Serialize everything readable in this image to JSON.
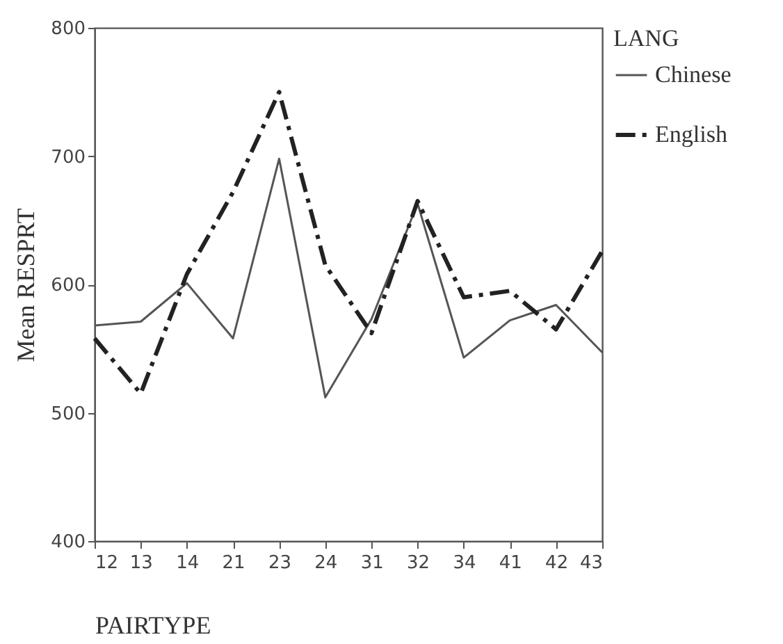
{
  "chart_data": {
    "type": "line",
    "xlabel": "PAIRTYPE",
    "ylabel": "Mean RESPRT",
    "legend_title": "LANG",
    "categories": [
      "12",
      "13",
      "14",
      "21",
      "23",
      "24",
      "31",
      "32",
      "34",
      "41",
      "42",
      "43"
    ],
    "series": [
      {
        "name": "Chinese",
        "color": "#555555",
        "line_style": "solid",
        "values": [
          568,
          571,
          601,
          558,
          698,
          512,
          573,
          663,
          543,
          572,
          584,
          547
        ]
      },
      {
        "name": "English",
        "color": "#222222",
        "line_style": "dashed",
        "values": [
          558,
          515,
          608,
          672,
          750,
          615,
          562,
          665,
          590,
          595,
          565,
          626
        ]
      }
    ],
    "ylim": [
      400,
      800
    ],
    "yticks": [
      400,
      500,
      600,
      700,
      800
    ],
    "grid": false,
    "legend": "right",
    "marker": "none"
  }
}
